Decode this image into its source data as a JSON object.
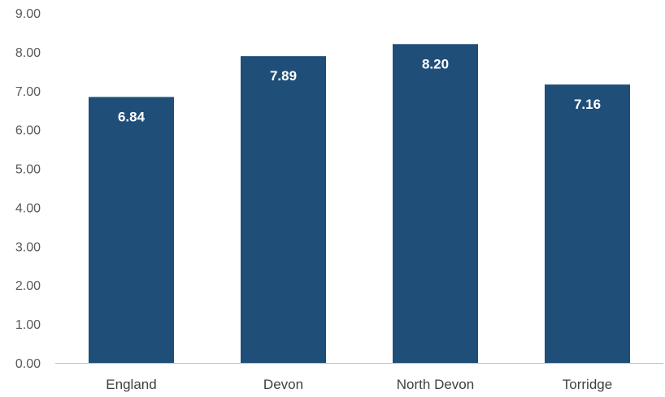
{
  "chart_data": {
    "type": "bar",
    "title": "",
    "xlabel": "",
    "ylabel": "",
    "categories": [
      "England",
      "Devon",
      "North Devon",
      "Torridge"
    ],
    "values": [
      6.84,
      7.89,
      8.2,
      7.16
    ],
    "data_labels": [
      "6.84",
      "7.89",
      "8.20",
      "7.16"
    ],
    "ylim": [
      0,
      9
    ],
    "y_ticks": [
      "0.00",
      "1.00",
      "2.00",
      "3.00",
      "4.00",
      "5.00",
      "6.00",
      "7.00",
      "8.00",
      "9.00"
    ],
    "grid": false,
    "legend": "none",
    "colors": {
      "bar": "#1f4e79",
      "axis": "#bfbfbf",
      "data_label": "#ffffff"
    }
  }
}
